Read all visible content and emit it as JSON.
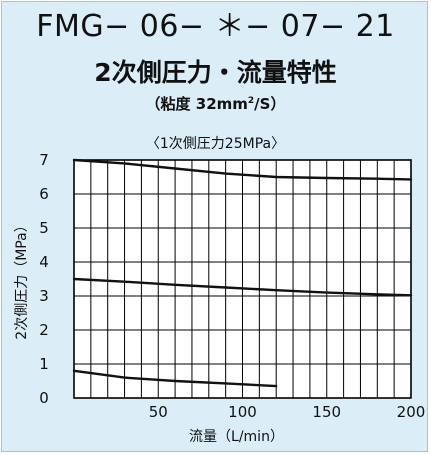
{
  "title": "FMG− 06− ＊− 07− 21",
  "subtitle": "2次側圧力・流量特性",
  "condition": {
    "prefix": "（粘度 32mm",
    "exp": "2",
    "suffix": "/S）"
  },
  "annotation": "〈1次側圧力25MPa〉",
  "colors": {
    "panel_bg": "#dbeef8",
    "plot_bg": "#ffffff",
    "grid": "#000000",
    "curve": "#111111"
  },
  "chart_data": {
    "type": "line",
    "title": "2次側圧力・流量特性",
    "xlabel": "流量（L/min）",
    "ylabel": "2次側圧力（MPa）",
    "xlim": [
      0,
      200
    ],
    "ylim": [
      0,
      7
    ],
    "x_ticks": [
      50,
      100,
      150,
      200
    ],
    "y_ticks": [
      0,
      1,
      2,
      3,
      4,
      5,
      6,
      7
    ],
    "x_grid_step": 10,
    "y_grid_step": 1,
    "grid": true,
    "legend": "none",
    "series": [
      {
        "x": [
          0,
          30,
          60,
          90,
          120,
          150,
          180,
          200
        ],
        "y": [
          7.0,
          6.9,
          6.75,
          6.6,
          6.5,
          6.47,
          6.45,
          6.43
        ]
      },
      {
        "x": [
          0,
          30,
          60,
          90,
          120,
          150,
          180,
          200
        ],
        "y": [
          3.5,
          3.42,
          3.33,
          3.25,
          3.17,
          3.1,
          3.05,
          3.02
        ]
      },
      {
        "x": [
          0,
          30,
          60,
          90,
          120
        ],
        "y": [
          0.8,
          0.6,
          0.5,
          0.43,
          0.35
        ]
      }
    ]
  }
}
